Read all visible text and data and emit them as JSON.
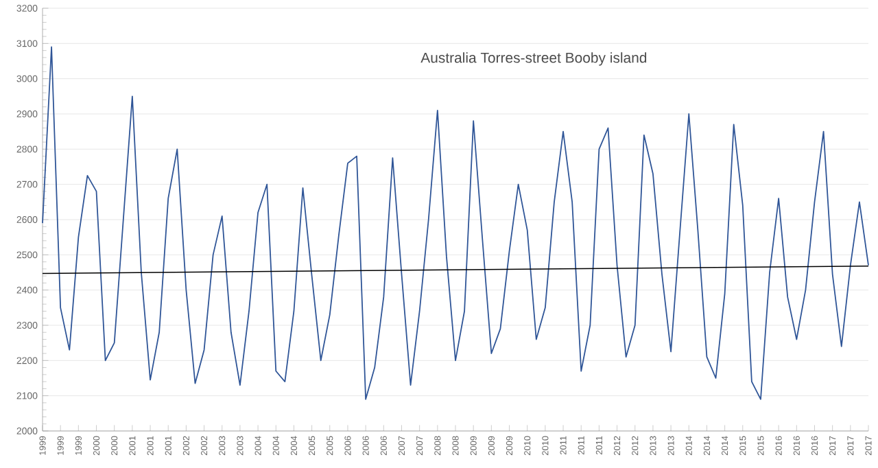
{
  "chart_data": {
    "type": "line",
    "title": "Australia Torres-street Booby island",
    "categories": [
      "1999",
      null,
      "1999",
      null,
      "1999",
      null,
      "2000",
      null,
      "2000",
      null,
      "2001",
      null,
      "2001",
      null,
      "2001",
      null,
      "2002",
      null,
      "2002",
      null,
      "2003",
      null,
      "2003",
      null,
      "2004",
      null,
      "2004",
      null,
      "2004",
      null,
      "2005",
      null,
      "2005",
      null,
      "2006",
      null,
      "2006",
      null,
      "2006",
      null,
      "2007",
      null,
      "2007",
      null,
      "2008",
      null,
      "2008",
      null,
      "2009",
      null,
      "2009",
      null,
      "2009",
      null,
      "2010",
      null,
      "2010",
      null,
      "2011",
      null,
      "2011",
      null,
      "2011",
      null,
      "2012",
      null,
      "2012",
      null,
      "2013",
      null,
      "2013",
      null,
      "2014",
      null,
      "2014",
      null,
      "2014",
      null,
      "2015",
      null,
      "2015",
      null,
      "2016",
      null,
      "2016",
      null,
      "2016",
      null,
      "2017",
      null,
      "2017",
      null,
      "2017"
    ],
    "series": [
      {
        "color": "#2f5597",
        "values": [
          2590,
          3090,
          2350,
          2230,
          2550,
          2725,
          2680,
          2200,
          2250,
          2600,
          2950,
          2450,
          2145,
          2280,
          2660,
          2800,
          2400,
          2135,
          2230,
          2500,
          2610,
          2280,
          2130,
          2340,
          2620,
          2700,
          2170,
          2140,
          2340,
          2690,
          2440,
          2200,
          2330,
          2555,
          2760,
          2780,
          2090,
          2180,
          2380,
          2775,
          2445,
          2130,
          2340,
          2600,
          2910,
          2495,
          2200,
          2340,
          2880,
          2545,
          2220,
          2290,
          2510,
          2700,
          2570,
          2260,
          2350,
          2650,
          2850,
          2650,
          2170,
          2300,
          2800,
          2860,
          2470,
          2210,
          2300,
          2840,
          2730,
          2445,
          2225,
          2565,
          2900,
          2570,
          2210,
          2150,
          2390,
          2870,
          2640,
          2140,
          2090,
          2450,
          2660,
          2380,
          2260,
          2400,
          2650,
          2850,
          2445,
          2240,
          2470,
          2650,
          2470
        ]
      },
      {
        "type": "line",
        "color": "#000000",
        "values": [
          2447,
          null,
          null,
          null,
          null,
          null,
          null,
          null,
          null,
          null,
          null,
          null,
          null,
          null,
          null,
          null,
          null,
          null,
          null,
          null,
          null,
          null,
          null,
          null,
          null,
          null,
          null,
          null,
          null,
          null,
          null,
          null,
          null,
          null,
          null,
          null,
          null,
          null,
          null,
          null,
          null,
          null,
          null,
          null,
          null,
          null,
          null,
          null,
          null,
          null,
          null,
          null,
          null,
          null,
          null,
          null,
          null,
          null,
          null,
          null,
          null,
          null,
          null,
          null,
          null,
          null,
          null,
          null,
          null,
          null,
          null,
          null,
          null,
          null,
          null,
          null,
          null,
          null,
          null,
          null,
          null,
          null,
          null,
          null,
          null,
          null,
          null,
          null,
          null,
          null,
          null,
          null,
          2468
        ]
      }
    ],
    "ylim": [
      2000,
      3200
    ],
    "yticks": [
      2000,
      2100,
      2200,
      2300,
      2400,
      2500,
      2600,
      2700,
      2800,
      2900,
      3000,
      3100,
      3200
    ],
    "grid": "y"
  }
}
